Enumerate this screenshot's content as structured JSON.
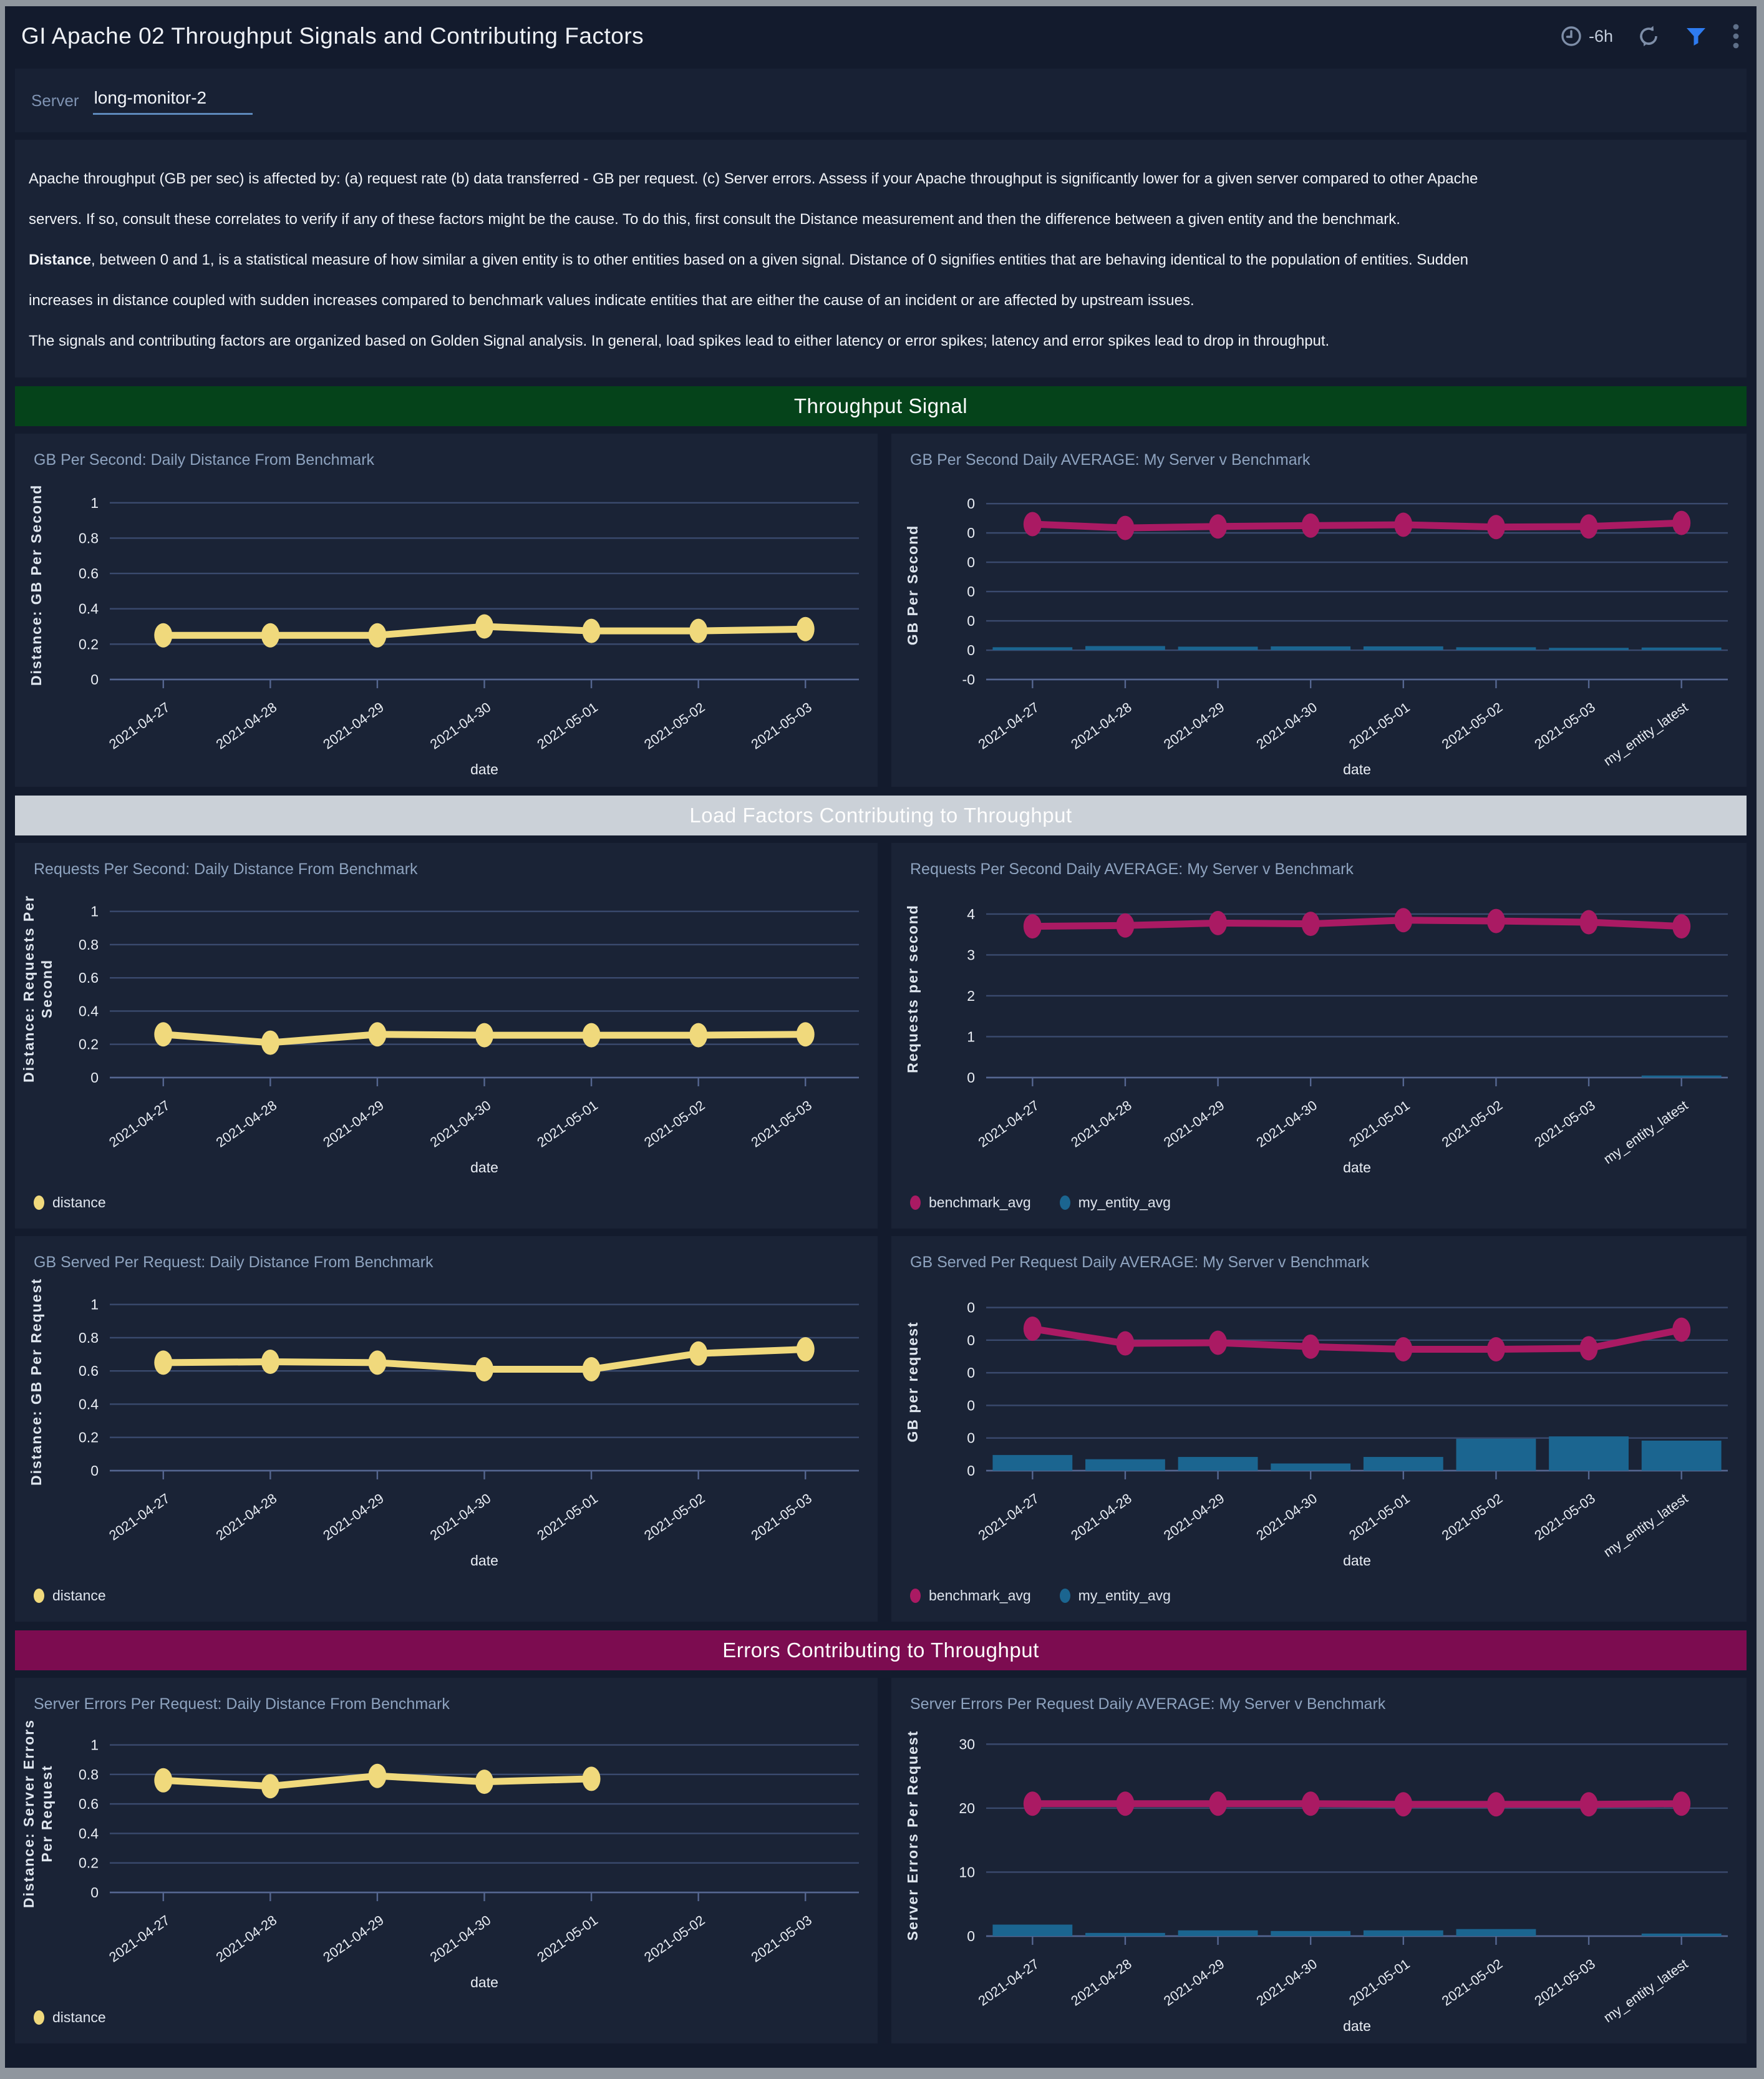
{
  "page": {
    "header": {
      "title": "GI Apache 02 Throughput Signals and Contributing Factors",
      "time_range": "-6h",
      "icons": [
        "clock-icon",
        "refresh-icon",
        "filter-funnel-icon",
        "kebab-menu-icon"
      ]
    },
    "filter": {
      "label": "Server",
      "value": "long-monitor-2"
    },
    "description": {
      "lines": [
        {
          "bold": "",
          "text": "Apache throughput (GB per sec) is affected by: (a) request rate (b) data transferred - GB per request. (c) Server errors. Assess if your Apache throughput is significantly lower for a given server compared to other Apache"
        },
        {
          "bold": "",
          "text": "servers. If so, consult these correlates to verify if any of these factors might be the cause. To do this, first consult the Distance measurement and then the difference between a given entity and the benchmark."
        },
        {
          "bold": "Distance",
          "text": ", between 0 and 1, is a statistical measure of how similar a given entity is to other entities based on a given signal. Distance of 0 signifies entities that are behaving identical to the population of entities. Sudden"
        },
        {
          "bold": "",
          "text": "increases in distance coupled with sudden increases compared to benchmark values indicate entities that are either the cause of an incident or are affected by upstream issues."
        },
        {
          "bold": "",
          "text": "The signals and contributing factors are organized based on Golden Signal analysis. In general, load spikes lead to either latency or error spikes; latency and error spikes lead to drop in throughput."
        }
      ]
    },
    "sections": [
      {
        "label": "Throughput Signal",
        "color": "#05431a"
      },
      {
        "label": "Load Factors Contributing to Throughput",
        "color": "#cbd1d8"
      },
      {
        "label": "Errors Contributing to Throughput",
        "color": "#7c0c50"
      }
    ],
    "colors": {
      "accent_yellow": "#f0d97c",
      "accent_magenta": "#aa1a63",
      "accent_blue": "#1b6590",
      "funnel_blue": "#2e7bf0",
      "grid": "#3a4a6e",
      "axis": "#556690",
      "tick_text": "#e9edf4",
      "muted_icon": "#7e8ea8"
    }
  },
  "chart_data": [
    {
      "type": "line",
      "title": "GB Per Second: Daily Distance From Benchmark",
      "ylabel": [
        "Distance: GB Per Second"
      ],
      "xlabel": "date",
      "categories": [
        "2021-04-27",
        "2021-04-28",
        "2021-04-29",
        "2021-04-30",
        "2021-05-01",
        "2021-05-02",
        "2021-05-03"
      ],
      "yticks": [
        {
          "v": 0,
          "label": "0"
        },
        {
          "v": 0.2,
          "label": "0.2"
        },
        {
          "v": 0.4,
          "label": "0.4"
        },
        {
          "v": 0.6,
          "label": "0.6"
        },
        {
          "v": 0.8,
          "label": "0.8"
        },
        {
          "v": 1,
          "label": "1"
        }
      ],
      "ylim": [
        0,
        1.07
      ],
      "series": [
        {
          "name": "distance",
          "type": "line",
          "color": "#f0d97c",
          "values": [
            0.25,
            0.25,
            0.25,
            0.3,
            0.275,
            0.275,
            0.285
          ]
        }
      ],
      "legend": []
    },
    {
      "type": "line",
      "title": "GB Per Second Daily AVERAGE: My Server v Benchmark",
      "ylabel": [
        "GB Per Second"
      ],
      "xlabel": "date",
      "categories": [
        "2021-04-27",
        "2021-04-28",
        "2021-04-29",
        "2021-04-30",
        "2021-05-01",
        "2021-05-02",
        "2021-05-03",
        "my_entity_latest"
      ],
      "yticks": [
        {
          "v": 0,
          "label": "-0"
        },
        {
          "v": 1,
          "label": "0"
        },
        {
          "v": 2,
          "label": "0"
        },
        {
          "v": 3,
          "label": "0"
        },
        {
          "v": 4,
          "label": "0"
        },
        {
          "v": 5,
          "label": "0"
        },
        {
          "v": 6,
          "label": "0"
        }
      ],
      "ylim": [
        0,
        6.45
      ],
      "series": [
        {
          "name": "my_entity_avg",
          "type": "bar",
          "color": "#1b6590",
          "base": 1,
          "values": [
            1.1,
            1.14,
            1.12,
            1.13,
            1.13,
            1.1,
            1.08,
            1.09
          ]
        },
        {
          "name": "benchmark_avg",
          "type": "line",
          "color": "#aa1a63",
          "values": [
            5.3,
            5.17,
            5.22,
            5.25,
            5.28,
            5.2,
            5.22,
            5.34
          ]
        }
      ],
      "legend": []
    },
    {
      "type": "line",
      "title": "Requests Per Second: Daily Distance From Benchmark",
      "ylabel": [
        "Distance: Requests Per",
        "Second"
      ],
      "xlabel": "date",
      "categories": [
        "2021-04-27",
        "2021-04-28",
        "2021-04-29",
        "2021-04-30",
        "2021-05-01",
        "2021-05-02",
        "2021-05-03"
      ],
      "yticks": [
        {
          "v": 0,
          "label": "0"
        },
        {
          "v": 0.2,
          "label": "0.2"
        },
        {
          "v": 0.4,
          "label": "0.4"
        },
        {
          "v": 0.6,
          "label": "0.6"
        },
        {
          "v": 0.8,
          "label": "0.8"
        },
        {
          "v": 1,
          "label": "1"
        }
      ],
      "ylim": [
        0,
        1.07
      ],
      "series": [
        {
          "name": "distance",
          "type": "line",
          "color": "#f0d97c",
          "values": [
            0.26,
            0.21,
            0.26,
            0.255,
            0.255,
            0.255,
            0.26
          ]
        }
      ],
      "legend": [
        {
          "name": "distance",
          "color": "#f0d97c"
        }
      ]
    },
    {
      "type": "line",
      "title": "Requests Per Second Daily AVERAGE: My Server v Benchmark",
      "ylabel": [
        "Requests per second"
      ],
      "xlabel": "date",
      "categories": [
        "2021-04-27",
        "2021-04-28",
        "2021-04-29",
        "2021-04-30",
        "2021-05-01",
        "2021-05-02",
        "2021-05-03",
        "my_entity_latest"
      ],
      "yticks": [
        {
          "v": 0,
          "label": "0"
        },
        {
          "v": 1,
          "label": "1"
        },
        {
          "v": 2,
          "label": "2"
        },
        {
          "v": 3,
          "label": "3"
        },
        {
          "v": 4,
          "label": "4"
        }
      ],
      "ylim": [
        0,
        4.35
      ],
      "series": [
        {
          "name": "my_entity_avg",
          "type": "bar",
          "color": "#1b6590",
          "base": 0,
          "values": [
            0,
            0,
            0,
            0,
            0,
            0,
            0,
            0.05
          ]
        },
        {
          "name": "benchmark_avg",
          "type": "line",
          "color": "#aa1a63",
          "values": [
            3.7,
            3.72,
            3.78,
            3.76,
            3.85,
            3.83,
            3.8,
            3.7
          ]
        }
      ],
      "legend": [
        {
          "name": "benchmark_avg",
          "color": "#aa1a63"
        },
        {
          "name": "my_entity_avg",
          "color": "#1b6590"
        }
      ]
    },
    {
      "type": "line",
      "title": "GB Served Per Request: Daily Distance From Benchmark",
      "ylabel": [
        "Distance: GB Per Request"
      ],
      "xlabel": "date",
      "categories": [
        "2021-04-27",
        "2021-04-28",
        "2021-04-29",
        "2021-04-30",
        "2021-05-01",
        "2021-05-02",
        "2021-05-03"
      ],
      "yticks": [
        {
          "v": 0,
          "label": "0"
        },
        {
          "v": 0.2,
          "label": "0.2"
        },
        {
          "v": 0.4,
          "label": "0.4"
        },
        {
          "v": 0.6,
          "label": "0.6"
        },
        {
          "v": 0.8,
          "label": "0.8"
        },
        {
          "v": 1,
          "label": "1"
        }
      ],
      "ylim": [
        0,
        1.07
      ],
      "series": [
        {
          "name": "distance",
          "type": "line",
          "color": "#f0d97c",
          "values": [
            0.65,
            0.655,
            0.65,
            0.61,
            0.61,
            0.705,
            0.73
          ]
        }
      ],
      "legend": [
        {
          "name": "distance",
          "color": "#f0d97c"
        }
      ]
    },
    {
      "type": "line",
      "title": "GB Served Per Request Daily AVERAGE: My Server v Benchmark",
      "ylabel": [
        "GB per request"
      ],
      "xlabel": "date",
      "categories": [
        "2021-04-27",
        "2021-04-28",
        "2021-04-29",
        "2021-04-30",
        "2021-05-01",
        "2021-05-02",
        "2021-05-03",
        "my_entity_latest"
      ],
      "yticks": [
        {
          "v": 0,
          "label": "0"
        },
        {
          "v": 1,
          "label": "0"
        },
        {
          "v": 2,
          "label": "0"
        },
        {
          "v": 3,
          "label": "0"
        },
        {
          "v": 4,
          "label": "0"
        },
        {
          "v": 5,
          "label": "0"
        }
      ],
      "ylim": [
        0,
        5.45
      ],
      "series": [
        {
          "name": "my_entity_avg",
          "type": "bar",
          "color": "#1b6590",
          "base": 0,
          "values": [
            0.48,
            0.35,
            0.42,
            0.22,
            0.42,
            0.98,
            1.05,
            0.92
          ]
        },
        {
          "name": "benchmark_avg",
          "type": "line",
          "color": "#aa1a63",
          "values": [
            4.35,
            3.9,
            3.92,
            3.8,
            3.72,
            3.72,
            3.75,
            4.32
          ]
        }
      ],
      "legend": [
        {
          "name": "benchmark_avg",
          "color": "#aa1a63"
        },
        {
          "name": "my_entity_avg",
          "color": "#1b6590"
        }
      ]
    },
    {
      "type": "line",
      "title": "Server Errors Per Request: Daily Distance From Benchmark",
      "ylabel": [
        "Distance: Server Errors",
        "Per Request"
      ],
      "xlabel": "date",
      "categories": [
        "2021-04-27",
        "2021-04-28",
        "2021-04-29",
        "2021-04-30",
        "2021-05-01",
        "2021-05-02",
        "2021-05-03"
      ],
      "yticks": [
        {
          "v": 0,
          "label": "0"
        },
        {
          "v": 0.2,
          "label": "0.2"
        },
        {
          "v": 0.4,
          "label": "0.4"
        },
        {
          "v": 0.6,
          "label": "0.6"
        },
        {
          "v": 0.8,
          "label": "0.8"
        },
        {
          "v": 1,
          "label": "1"
        }
      ],
      "ylim": [
        0,
        1.07
      ],
      "series": [
        {
          "name": "distance",
          "type": "line",
          "color": "#f0d97c",
          "values": [
            0.76,
            0.72,
            0.79,
            0.75,
            0.77,
            null,
            null
          ]
        }
      ],
      "legend": [
        {
          "name": "distance",
          "color": "#f0d97c"
        }
      ]
    },
    {
      "type": "line",
      "title": "Server Errors Per Request Daily AVERAGE: My Server v Benchmark",
      "ylabel": [
        "Server Errors Per Request"
      ],
      "xlabel": "date",
      "categories": [
        "2021-04-27",
        "2021-04-28",
        "2021-04-29",
        "2021-04-30",
        "2021-05-01",
        "2021-05-02",
        "2021-05-03",
        "my_entity_latest"
      ],
      "yticks": [
        {
          "v": 0,
          "label": "0"
        },
        {
          "v": 10,
          "label": "10"
        },
        {
          "v": 20,
          "label": "20"
        },
        {
          "v": 30,
          "label": "30"
        }
      ],
      "ylim": [
        0,
        31.5
      ],
      "series": [
        {
          "name": "my_entity_avg",
          "type": "bar",
          "color": "#1b6590",
          "base": 0,
          "values": [
            1.8,
            0.5,
            0.9,
            0.8,
            0.9,
            1.1,
            0,
            0.4
          ]
        },
        {
          "name": "benchmark_avg",
          "type": "line",
          "color": "#aa1a63",
          "values": [
            20.7,
            20.7,
            20.7,
            20.7,
            20.6,
            20.6,
            20.6,
            20.7
          ]
        }
      ],
      "legend": []
    }
  ]
}
